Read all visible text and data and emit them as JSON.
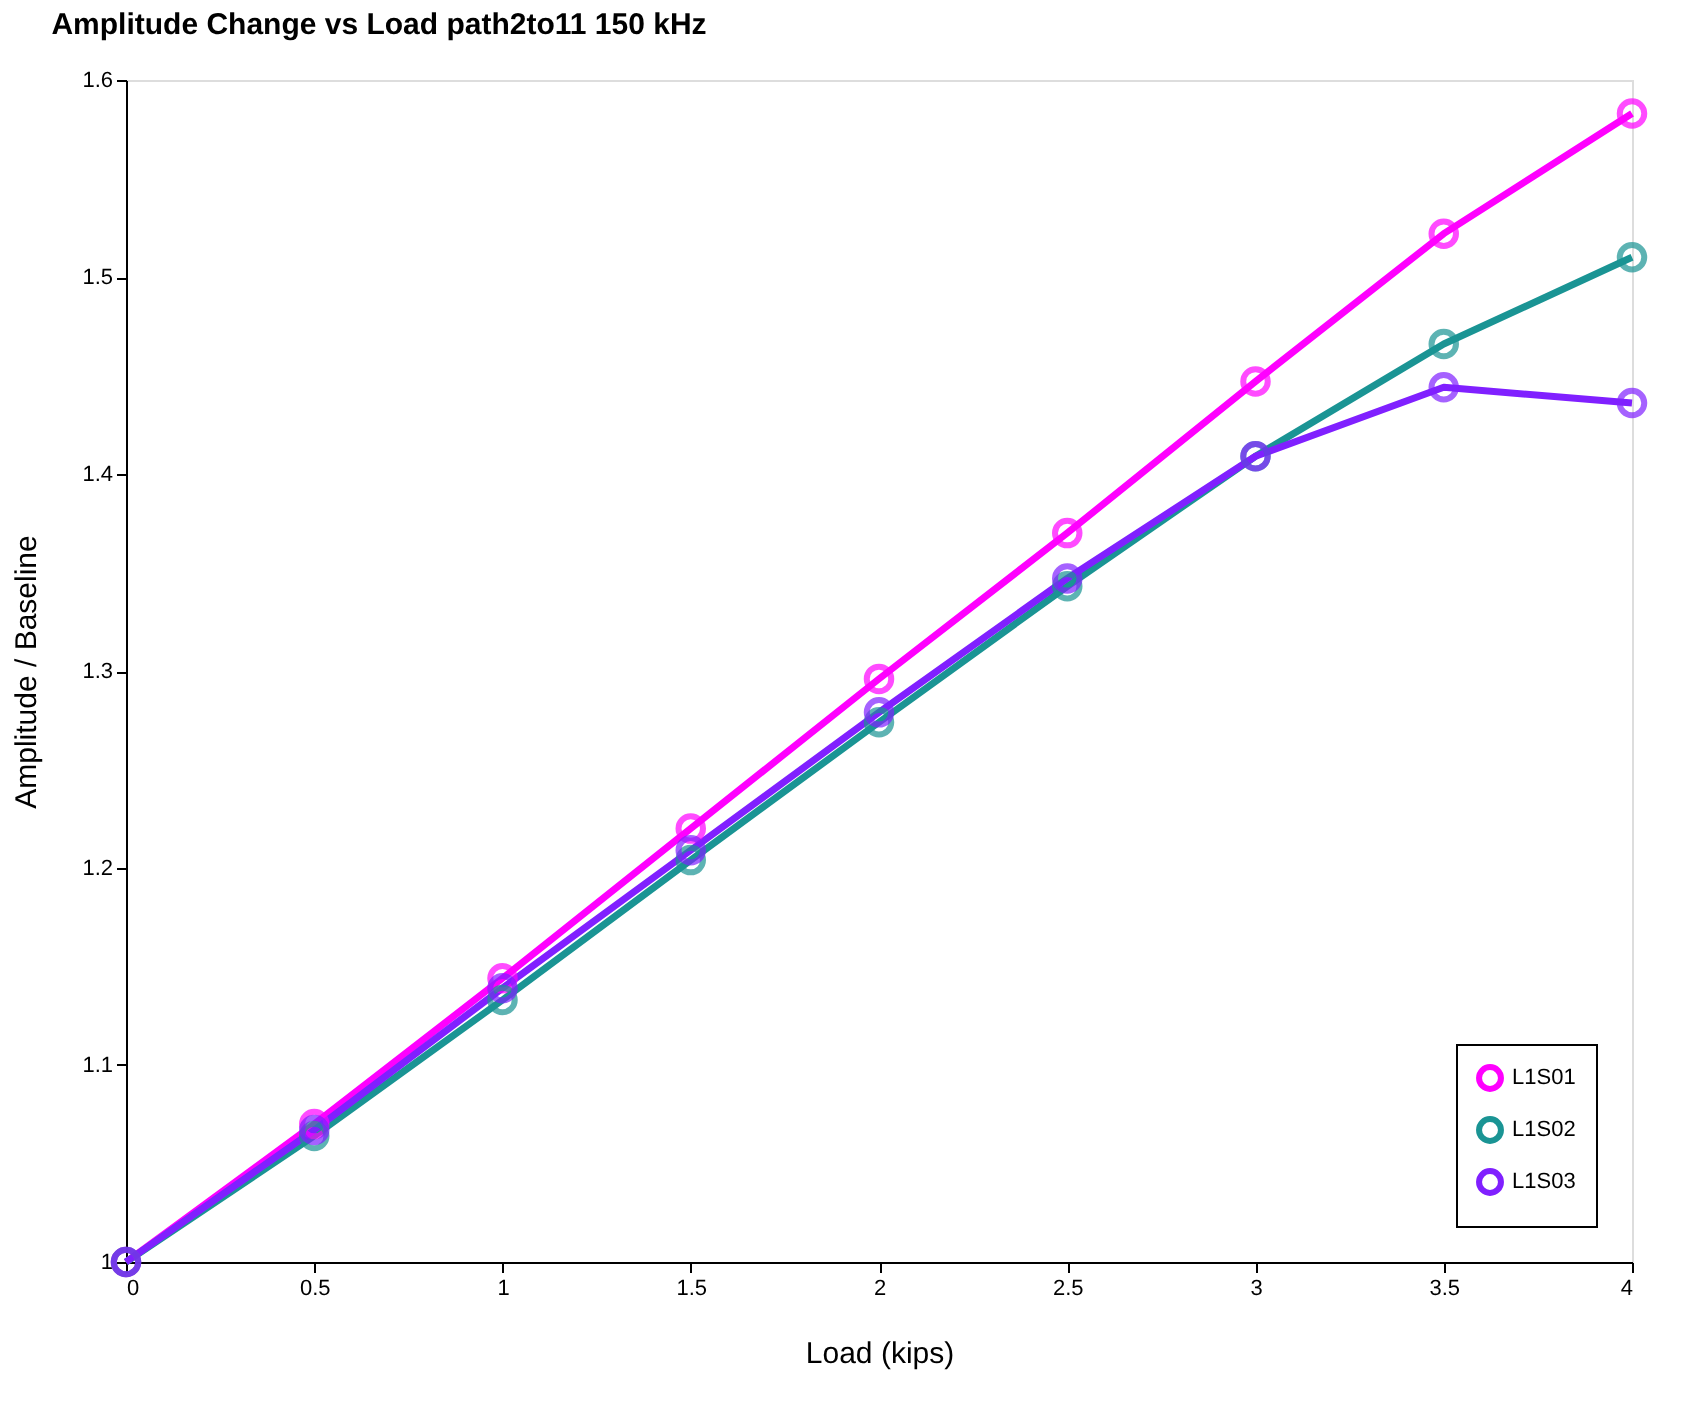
{
  "chart_data": {
    "type": "line",
    "title": "Amplitude Change vs Load path2to11 150 kHz",
    "xlabel": "Load (kips)",
    "ylabel": "Amplitude / Baseline",
    "x": [
      0,
      0.5,
      1,
      1.5,
      2,
      2.5,
      3,
      3.5,
      4
    ],
    "series": [
      {
        "name": "L1S01",
        "color": "#ff00ff",
        "values": [
          1.0,
          1.07,
          1.144,
          1.22,
          1.296,
          1.37,
          1.447,
          1.522,
          1.583
        ]
      },
      {
        "name": "L1S02",
        "color": "#1a9494",
        "values": [
          1.0,
          1.064,
          1.133,
          1.204,
          1.274,
          1.343,
          1.409,
          1.466,
          1.51
        ]
      },
      {
        "name": "L1S03",
        "color": "#8020ff",
        "values": [
          1.0,
          1.067,
          1.139,
          1.209,
          1.279,
          1.347,
          1.409,
          1.444,
          1.436
        ]
      }
    ],
    "xlim": [
      0,
      4
    ],
    "xticks": [
      0,
      0.5,
      1,
      1.5,
      2,
      2.5,
      3,
      3.5,
      4
    ],
    "ylim": [
      1,
      1.6
    ],
    "yticks": [
      1,
      1.1,
      1.2,
      1.3,
      1.4,
      1.5,
      1.6
    ],
    "grid": false,
    "legend": "bottom right",
    "marker": "circle",
    "line_style": "solid"
  }
}
